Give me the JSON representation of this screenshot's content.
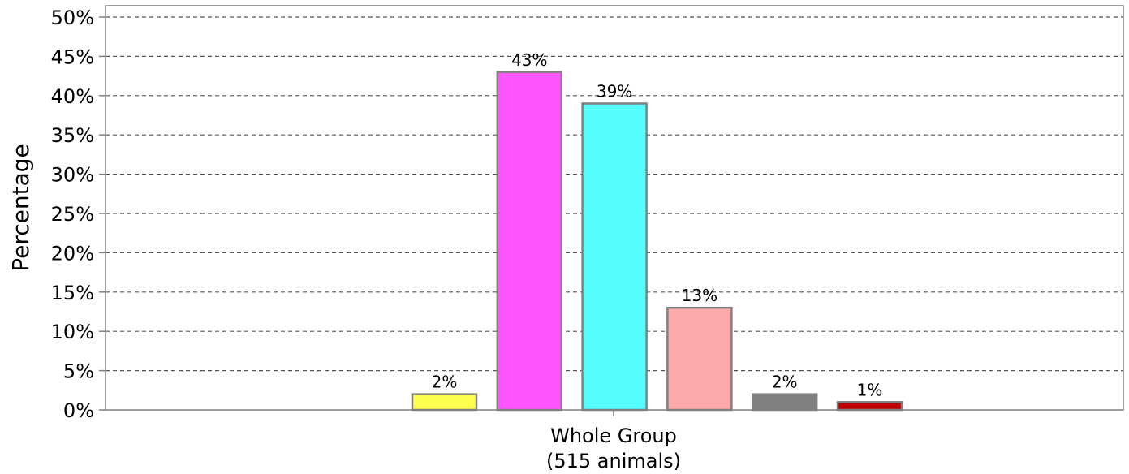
{
  "chart_data": {
    "type": "bar",
    "ylabel": "Percentage",
    "ylim": [
      0,
      50
    ],
    "ytick_step": 5,
    "ytick_suffix": "%",
    "grid": "horizontal dashed",
    "category_label_line1": "Whole Group",
    "category_label_line2": "(515 animals)",
    "bars": [
      {
        "value": 2,
        "label": "2%",
        "color": "#ffff4d"
      },
      {
        "value": 43,
        "label": "43%",
        "color": "#ff55ff"
      },
      {
        "value": 39,
        "label": "39%",
        "color": "#55ffff"
      },
      {
        "value": 13,
        "label": "13%",
        "color": "#ffaaaa"
      },
      {
        "value": 2,
        "label": "2%",
        "color": "#808080"
      },
      {
        "value": 1,
        "label": "1%",
        "color": "#c00000"
      }
    ],
    "bar_edge_color": "#808080"
  }
}
